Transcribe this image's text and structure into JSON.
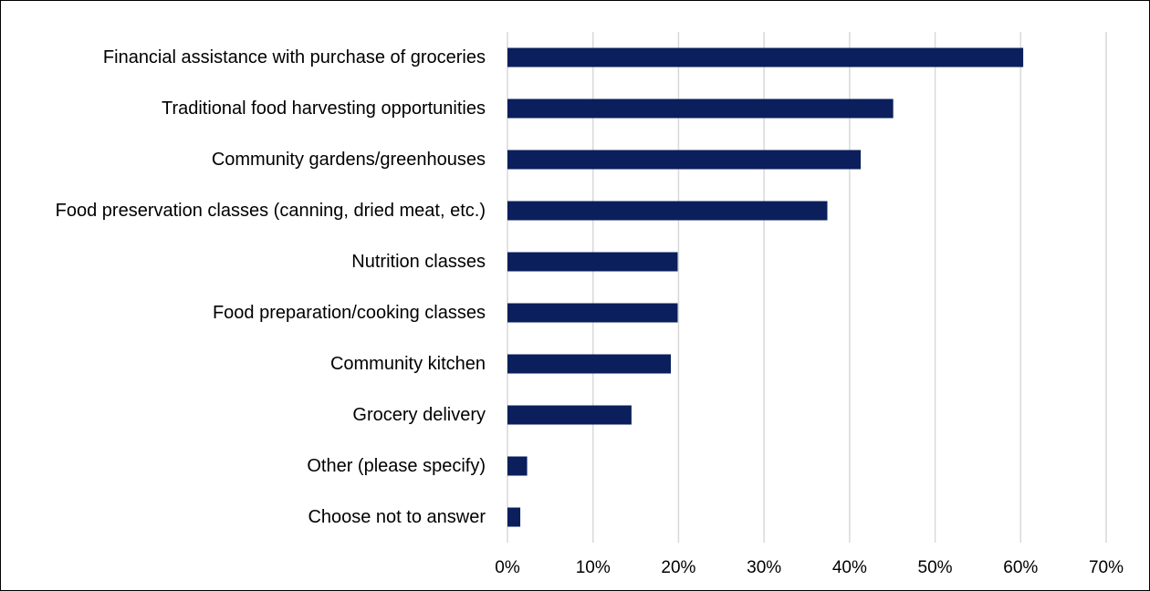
{
  "chart_data": {
    "type": "bar",
    "orientation": "horizontal",
    "categories": [
      "Financial assistance with purchase of groceries",
      "Traditional food harvesting opportunities",
      "Community gardens/greenhouses",
      "Food preservation classes (canning, dried meat, etc.)",
      "Nutrition classes",
      "Food preparation/cooking classes",
      "Community kitchen",
      "Grocery delivery",
      "Other (please specify)",
      "Choose not to answer"
    ],
    "values": [
      60.3,
      45.1,
      41.3,
      37.4,
      19.9,
      19.9,
      19.1,
      14.5,
      2.3,
      1.5
    ],
    "value_unit": "%",
    "xlim": [
      0,
      70
    ],
    "x_ticks": [
      0,
      10,
      20,
      30,
      40,
      50,
      60,
      70
    ],
    "x_tick_labels": [
      "0%",
      "10%",
      "20%",
      "30%",
      "40%",
      "50%",
      "60%",
      "70%"
    ],
    "title": "",
    "xlabel": "",
    "ylabel": "",
    "grid": "vertical",
    "legend": "none",
    "bar_color": "#0b1f5c",
    "grid_color": "#d9d9d9"
  }
}
